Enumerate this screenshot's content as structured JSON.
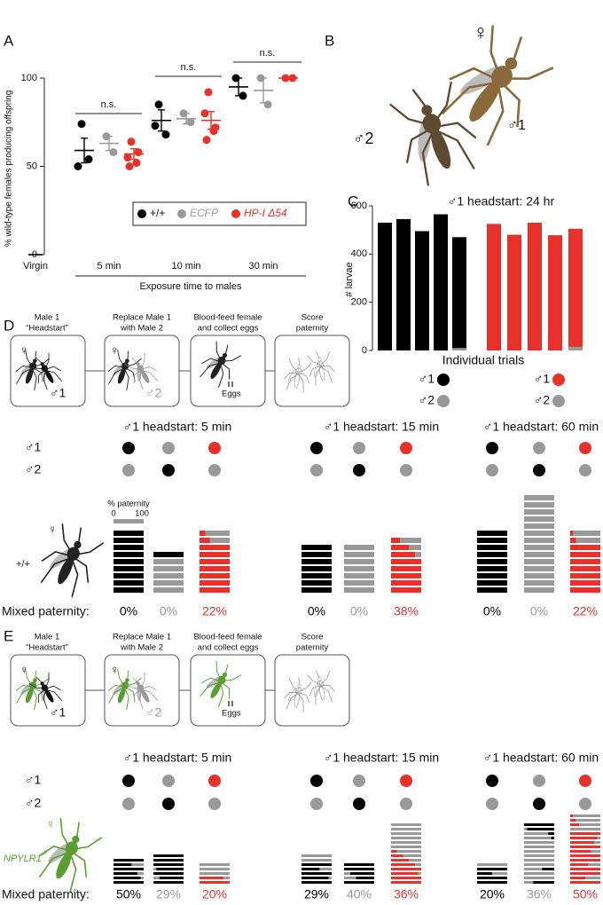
{
  "panel_labels": [
    "A",
    "B",
    "C",
    "D",
    "E"
  ],
  "chart_data": [
    {
      "type": "dot",
      "ylabel": "% wild-type females producing offspring",
      "xlabel": "Exposure time to males",
      "categories": [
        "Virgin",
        "5 min",
        "10 min",
        "30 min"
      ],
      "ylim": [
        0,
        100
      ],
      "yticks": [
        0,
        50,
        100
      ],
      "series": [
        {
          "name": "+/+",
          "color": "#000000",
          "values": [
            null,
            [
              74,
              54,
              50
            ],
            [
              85,
              68,
              73
            ],
            [
              100,
              90
            ]
          ],
          "means": [
            0,
            59,
            76,
            95
          ],
          "sem": [
            null,
            7,
            6,
            5
          ]
        },
        {
          "name": "ECFP",
          "color": "#999999",
          "values": [
            null,
            [
              67,
              58
            ],
            [
              80,
              75
            ],
            [
              100,
              85
            ]
          ],
          "means": [
            null,
            63,
            77,
            93
          ],
          "sem": [
            null,
            4,
            3,
            7
          ]
        },
        {
          "name": "HP-I Δ54",
          "color": "#e8312a",
          "values": [
            null,
            [
              64,
              58,
              55,
              52,
              50
            ],
            [
              92,
              72,
              80,
              70,
              65
            ],
            [
              100,
              100
            ]
          ],
          "means": [
            null,
            57,
            76,
            100
          ],
          "sem": [
            null,
            3,
            5,
            0
          ]
        }
      ],
      "annotations": [
        "n.s.",
        "n.s.",
        "n.s."
      ]
    },
    {
      "type": "stacked-bar",
      "title": "♂1 headstart: 24 hr",
      "ylabel": "# larvae",
      "xlabel": "Individual trials",
      "categories": [
        null,
        null,
        null,
        null,
        null,
        null,
        null,
        null,
        null,
        null
      ],
      "ylim": [
        0,
        600
      ],
      "yticks": [
        0,
        200,
        400,
        600
      ],
      "series": [
        {
          "name": "♂1",
          "color": "#000000",
          "values": [
            530,
            545,
            495,
            565,
            460,
            null,
            null,
            null,
            null,
            null
          ]
        },
        {
          "name": "♂2",
          "color": "#999999",
          "values": [
            0,
            0,
            0,
            0,
            10,
            null,
            null,
            null,
            null,
            null
          ]
        },
        {
          "name": "♂1",
          "color": "#e8312a",
          "values": [
            null,
            null,
            null,
            null,
            null,
            525,
            480,
            530,
            478,
            490
          ]
        },
        {
          "name": "♂2",
          "color": "#999999",
          "values": [
            null,
            null,
            null,
            null,
            null,
            0,
            0,
            0,
            0,
            15
          ]
        }
      ]
    }
  ],
  "panel_b": {
    "female": "♀",
    "male2": "♂2",
    "male1": "♂1"
  },
  "panel_d": {
    "steps": [
      [
        "Male 1",
        "“Headstart”"
      ],
      [
        "Replace Male 1",
        "with Male 2"
      ],
      [
        "Blood-feed female",
        "and collect eggs"
      ],
      [
        "Score",
        "paternity"
      ]
    ],
    "icon_labels": {
      "female": "♀",
      "male1": "♂1",
      "male2": "♂2",
      "eggs": "Eggs"
    },
    "female_color": "#222222",
    "row_labels": [
      "♂1",
      "♂2"
    ],
    "male1_colors": [
      "#000000",
      "#999999",
      "#e8312a"
    ],
    "male2_colors": [
      "#999999",
      "#000000",
      "#999999"
    ],
    "female_label": "+/+",
    "scale": {
      "title": "% paternity",
      "min": "0",
      "max": "100"
    },
    "mixed_label": "Mixed paternity:",
    "columns": [
      {
        "title": "♂1 headstart: 5 min",
        "stacks": [
          [
            100,
            100,
            100,
            100,
            100,
            100,
            100,
            100,
            100
          ],
          [
            0,
            100,
            100,
            100,
            100,
            100
          ],
          [
            20,
            35,
            100,
            100,
            100,
            100,
            100,
            100,
            100
          ]
        ],
        "mixed": [
          "0%",
          "0%",
          "22%"
        ]
      },
      {
        "title": "♂1 headstart: 15 min",
        "stacks": [
          [
            100,
            100,
            100,
            100,
            100,
            100,
            100
          ],
          [
            100,
            100,
            100,
            100,
            100,
            100,
            100
          ],
          [
            30,
            60,
            80,
            100,
            100,
            100,
            100,
            100
          ]
        ],
        "mixed": [
          "0%",
          "0%",
          "38%"
        ]
      },
      {
        "title": "♂1 headstart: 60 min",
        "stacks": [
          [
            100,
            100,
            100,
            100,
            100,
            100,
            100,
            100,
            100
          ],
          [
            100,
            100,
            100,
            100,
            100,
            100,
            100,
            100,
            100,
            100,
            100,
            100,
            100,
            100
          ],
          [
            10,
            20,
            100,
            100,
            100,
            100,
            100,
            100,
            100
          ]
        ],
        "mixed": [
          "0%",
          "0%",
          "22%"
        ]
      }
    ]
  },
  "panel_e": {
    "steps": [
      [
        "Male 1",
        "“Headstart”"
      ],
      [
        "Replace Male 1",
        "with Male 2"
      ],
      [
        "Blood-feed female",
        "and collect eggs"
      ],
      [
        "Score",
        "paternity"
      ]
    ],
    "icon_labels": {
      "female": "♀",
      "male1": "♂1",
      "male2": "♂2",
      "eggs": "Eggs"
    },
    "female_color": "#5a9e32",
    "row_labels": [
      "♂1",
      "♂2"
    ],
    "male1_colors": [
      "#000000",
      "#999999",
      "#e8312a"
    ],
    "male2_colors": [
      "#999999",
      "#000000",
      "#999999"
    ],
    "female_label": "NPYLR1",
    "female_superscript": "-/-",
    "mixed_label": "Mixed paternity:",
    "columns": [
      {
        "title": "♂1 headstart: 5 min",
        "stacks": [
          [
            100,
            60,
            100,
            80,
            90,
            100
          ],
          [
            0,
            0,
            0,
            10,
            0,
            20,
            0
          ],
          [
            0,
            0,
            0,
            80,
            100
          ]
        ],
        "mixed": [
          "50%",
          "29%",
          "20%"
        ]
      },
      {
        "title": "♂1 headstart: 15 min",
        "stacks": [
          [
            0,
            0,
            100,
            60,
            100,
            90,
            100
          ],
          [
            0,
            0,
            20,
            40,
            0
          ],
          [
            0,
            0,
            0,
            0,
            0,
            0,
            20,
            40,
            60,
            80,
            100,
            90,
            100,
            100
          ]
        ],
        "mixed": [
          "29%",
          "40%",
          "36%"
        ]
      },
      {
        "title": "♂1 headstart: 60 min",
        "stacks": [
          [
            0,
            100,
            50,
            100,
            100
          ],
          [
            0,
            10,
            80,
            90,
            100,
            100,
            100,
            100,
            100,
            100,
            60,
            100,
            100,
            30
          ],
          [
            10,
            20,
            30,
            0,
            100,
            90,
            80,
            100,
            70,
            100,
            100,
            60,
            100,
            100,
            50,
            100
          ]
        ],
        "mixed": [
          "20%",
          "36%",
          "50%"
        ]
      }
    ]
  }
}
